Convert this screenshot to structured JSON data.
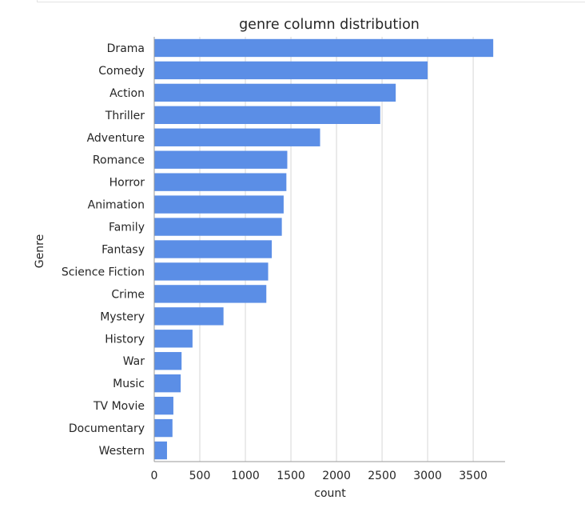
{
  "chart_data": {
    "type": "bar",
    "orientation": "horizontal",
    "title": "genre column distribution",
    "xlabel": "count",
    "ylabel": "Genre",
    "xlim": [
      0,
      3850
    ],
    "xticks": [
      0,
      500,
      1000,
      1500,
      2000,
      2500,
      3000,
      3500
    ],
    "grid": "vertical",
    "bar_color": "#5b8ee6",
    "categories": [
      "Drama",
      "Comedy",
      "Action",
      "Thriller",
      "Adventure",
      "Romance",
      "Horror",
      "Animation",
      "Family",
      "Fantasy",
      "Science Fiction",
      "Crime",
      "Mystery",
      "History",
      "War",
      "Music",
      "TV Movie",
      "Documentary",
      "Western"
    ],
    "values": [
      3720,
      3000,
      2650,
      2480,
      1820,
      1460,
      1450,
      1420,
      1400,
      1290,
      1250,
      1230,
      760,
      420,
      300,
      290,
      210,
      200,
      140
    ]
  }
}
